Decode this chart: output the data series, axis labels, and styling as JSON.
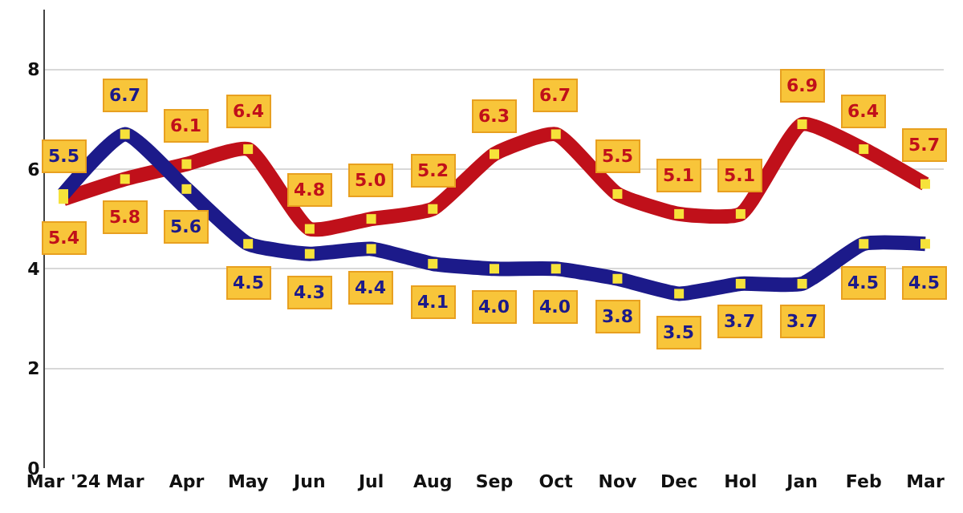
{
  "chart_data": {
    "type": "line",
    "categories": [
      "Mar '24",
      "Mar",
      "Apr",
      "May",
      "Jun",
      "Jul",
      "Aug",
      "Sep",
      "Oct",
      "Nov",
      "Dec",
      "Hol",
      "Jan",
      "Feb",
      "Mar"
    ],
    "series": [
      {
        "color": "#c0101a",
        "values": [
          5.4,
          5.8,
          6.1,
          6.4,
          4.8,
          5.0,
          5.2,
          6.3,
          6.7,
          5.5,
          5.1,
          5.1,
          6.9,
          6.4,
          5.7
        ],
        "value_labels": [
          "5.4",
          "5.8",
          "6.1",
          "6.4",
          "4.8",
          "5.0",
          "5.2",
          "6.3",
          "6.7",
          "5.5",
          "5.1",
          "5.1",
          "6.9",
          "6.4",
          "5.7"
        ]
      },
      {
        "color": "#1c1a8a",
        "values": [
          5.5,
          6.7,
          5.6,
          4.5,
          4.3,
          4.4,
          4.1,
          4.0,
          4.0,
          3.8,
          3.5,
          3.7,
          3.7,
          4.5,
          4.5
        ],
        "value_labels": [
          "5.5",
          "6.7",
          "5.6",
          "4.5",
          "4.3",
          "4.4",
          "4.1",
          "4.0",
          "4.0",
          "3.8",
          "3.5",
          "3.7",
          "3.7",
          "4.5",
          "4.5"
        ]
      }
    ],
    "ylim": [
      0,
      9.2
    ],
    "yticks": [
      0,
      2,
      4,
      6,
      8
    ],
    "grid": "y",
    "marker": "square",
    "line_style": "solid"
  }
}
